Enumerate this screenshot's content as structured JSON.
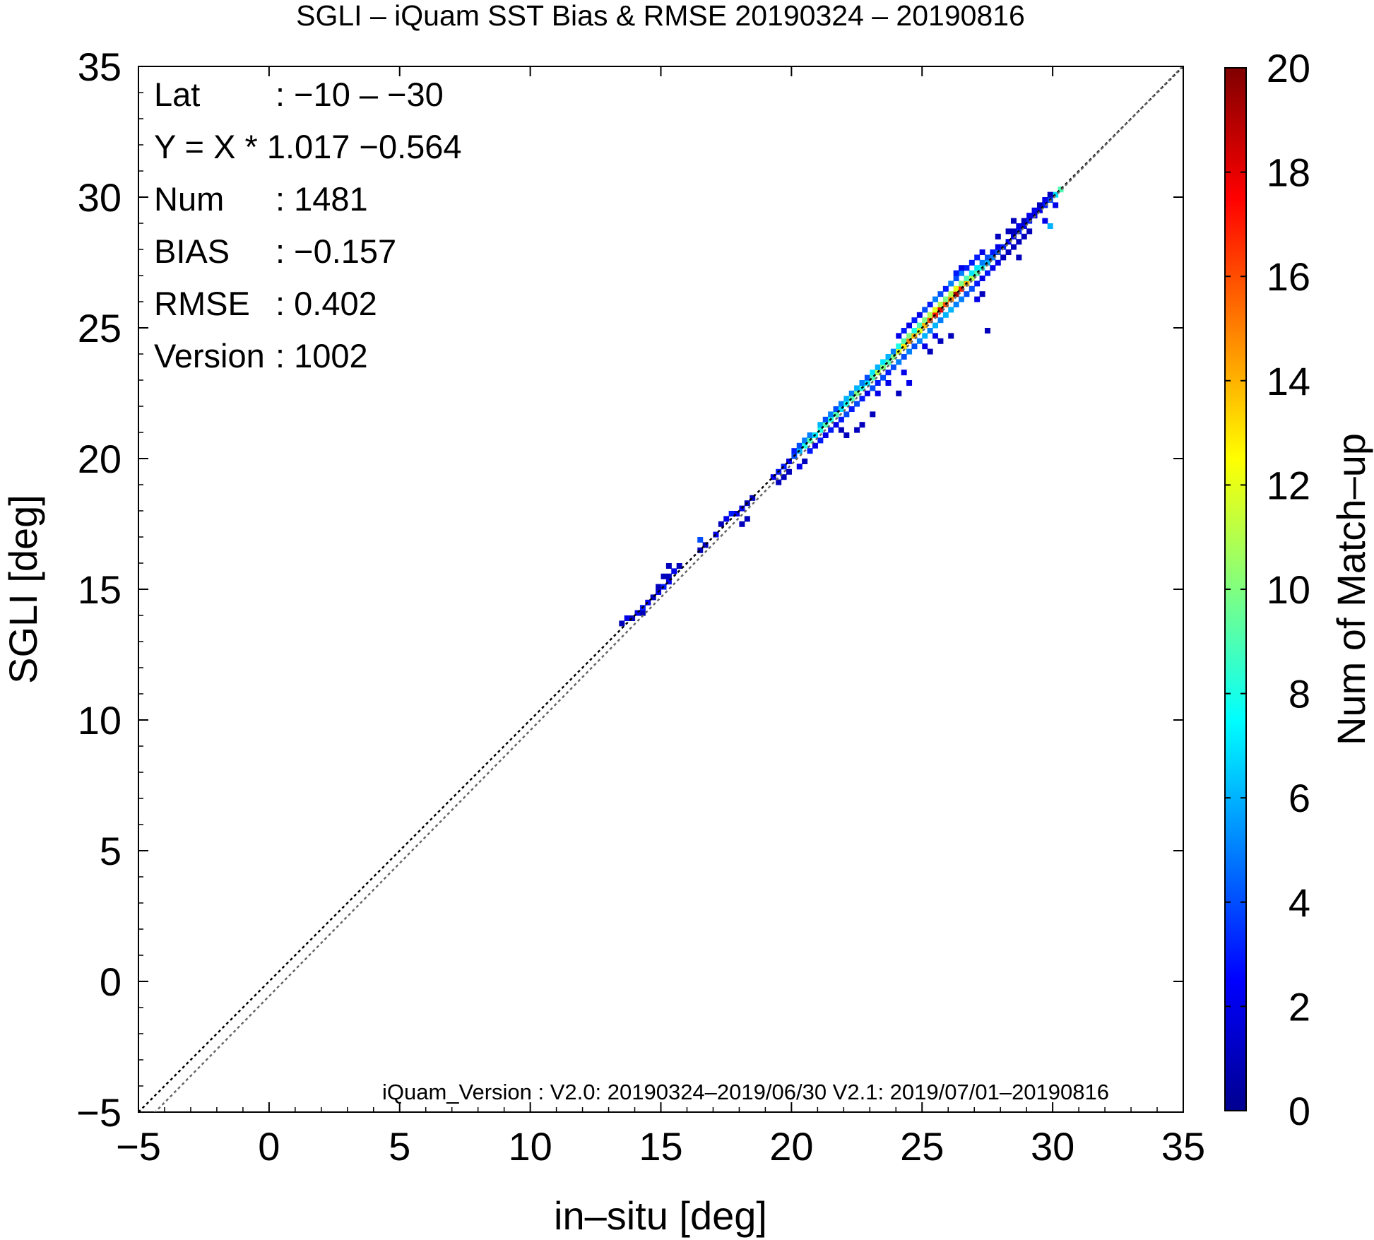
{
  "chart_data": {
    "type": "heatmap",
    "title": "SGLI – iQuam  SST Bias & RMSE 20190324 – 20190816",
    "xlabel": "in–situ [deg]",
    "ylabel": "SGLI [deg]",
    "xlim": [
      -5,
      35
    ],
    "ylim": [
      -5,
      35
    ],
    "x_ticks": [
      "−5",
      "0",
      "5",
      "10",
      "15",
      "20",
      "25",
      "30",
      "35"
    ],
    "y_ticks": [
      "−5",
      "0",
      "5",
      "10",
      "15",
      "20",
      "25",
      "30",
      "35"
    ],
    "grid": false,
    "info": [
      {
        "key": "Lat",
        "value": ": −10 – −30"
      },
      {
        "key": "Y = X * 1.017 −0.564",
        "value": ""
      },
      {
        "key": "Num",
        "value": ": 1481"
      },
      {
        "key": "BIAS",
        "value": ": −0.157"
      },
      {
        "key": "RMSE",
        "value": ": 0.402"
      },
      {
        "key": "Version",
        "value": ": 1002"
      }
    ],
    "footnote": "iQuam_Version : V2.0: 20190324–2019/06/30 V2.1: 2019/07/01–20190816",
    "lines": [
      {
        "name": "one-to-one",
        "slope": 1,
        "intercept": 0,
        "color": "#000000",
        "dash": "dotted"
      },
      {
        "name": "regression",
        "slope": 1.017,
        "intercept": -0.564,
        "color": "#666666",
        "dash": "dotted"
      }
    ],
    "colorbar": {
      "label": "Num of Match–up",
      "min": 0,
      "max": 20,
      "ticks": [
        "0",
        "2",
        "4",
        "6",
        "8",
        "10",
        "12",
        "14",
        "16",
        "18",
        "20"
      ],
      "colors": [
        "#00008f",
        "#0000ff",
        "#0080ff",
        "#00ffff",
        "#80ff80",
        "#ffff00",
        "#ff8000",
        "#ff0000",
        "#800000"
      ]
    },
    "bin_size": 0.2,
    "cells": [
      [
        13.4,
        13.6,
        1
      ],
      [
        13.6,
        13.8,
        2
      ],
      [
        13.8,
        13.8,
        1
      ],
      [
        14.0,
        14.0,
        2
      ],
      [
        14.2,
        14.0,
        1
      ],
      [
        14.2,
        14.2,
        3
      ],
      [
        14.4,
        14.4,
        2
      ],
      [
        14.6,
        14.6,
        1
      ],
      [
        14.8,
        14.8,
        2
      ],
      [
        14.8,
        15.0,
        1
      ],
      [
        15.0,
        15.0,
        3
      ],
      [
        15.2,
        15.2,
        2
      ],
      [
        15.2,
        15.4,
        1
      ],
      [
        15.4,
        15.6,
        2
      ],
      [
        15.6,
        15.8,
        1
      ],
      [
        15.2,
        15.8,
        1
      ],
      [
        15.0,
        15.4,
        1
      ],
      [
        16.4,
        16.8,
        4
      ],
      [
        16.6,
        16.6,
        1
      ],
      [
        17.0,
        17.0,
        2
      ],
      [
        17.2,
        17.4,
        1
      ],
      [
        17.4,
        17.6,
        2
      ],
      [
        17.6,
        17.8,
        3
      ],
      [
        17.8,
        17.8,
        2
      ],
      [
        18.0,
        18.0,
        2
      ],
      [
        18.2,
        18.2,
        1
      ],
      [
        18.4,
        18.4,
        1
      ],
      [
        18.2,
        17.6,
        1
      ],
      [
        18.0,
        17.4,
        1
      ],
      [
        16.4,
        16.4,
        1
      ],
      [
        19.2,
        19.2,
        2
      ],
      [
        19.4,
        19.4,
        3
      ],
      [
        19.6,
        19.6,
        3
      ],
      [
        19.8,
        19.8,
        2
      ],
      [
        19.4,
        19.0,
        1
      ],
      [
        19.8,
        19.4,
        1
      ],
      [
        19.6,
        19.2,
        1
      ],
      [
        20.0,
        20.0,
        4
      ],
      [
        20.0,
        20.2,
        3
      ],
      [
        20.2,
        20.2,
        6
      ],
      [
        20.2,
        20.4,
        4
      ],
      [
        20.4,
        20.4,
        8
      ],
      [
        20.4,
        20.6,
        5
      ],
      [
        20.6,
        20.6,
        9
      ],
      [
        20.6,
        20.8,
        5
      ],
      [
        20.8,
        20.8,
        7
      ],
      [
        20.6,
        20.2,
        3
      ],
      [
        20.8,
        20.4,
        2
      ],
      [
        21.0,
        20.6,
        3
      ],
      [
        21.0,
        21.0,
        8
      ],
      [
        21.0,
        21.2,
        6
      ],
      [
        21.2,
        21.2,
        9
      ],
      [
        21.2,
        21.4,
        4
      ],
      [
        21.4,
        21.4,
        8
      ],
      [
        21.4,
        21.6,
        5
      ],
      [
        21.6,
        21.6,
        9
      ],
      [
        21.6,
        21.8,
        4
      ],
      [
        21.8,
        21.8,
        7
      ],
      [
        21.8,
        22.0,
        5
      ],
      [
        21.2,
        20.8,
        2
      ],
      [
        21.4,
        21.0,
        3
      ],
      [
        21.6,
        21.2,
        2
      ],
      [
        21.8,
        21.4,
        3
      ],
      [
        20.4,
        19.8,
        1
      ],
      [
        20.2,
        19.6,
        2
      ],
      [
        22.0,
        22.0,
        8
      ],
      [
        22.0,
        22.2,
        6
      ],
      [
        22.2,
        22.2,
        9
      ],
      [
        22.2,
        22.4,
        5
      ],
      [
        22.4,
        22.4,
        10
      ],
      [
        22.4,
        22.6,
        6
      ],
      [
        22.6,
        22.6,
        8
      ],
      [
        22.6,
        22.8,
        5
      ],
      [
        22.8,
        22.8,
        7
      ],
      [
        22.8,
        23.0,
        4
      ],
      [
        22.0,
        21.6,
        4
      ],
      [
        22.2,
        21.8,
        3
      ],
      [
        22.4,
        22.0,
        4
      ],
      [
        22.6,
        22.2,
        3
      ],
      [
        22.8,
        22.4,
        2
      ],
      [
        21.8,
        21.0,
        1
      ],
      [
        22.0,
        20.8,
        1
      ],
      [
        22.4,
        21.0,
        1
      ],
      [
        22.6,
        21.2,
        1
      ],
      [
        23.0,
        21.6,
        1
      ],
      [
        23.0,
        23.0,
        9
      ],
      [
        23.0,
        23.2,
        7
      ],
      [
        23.2,
        23.2,
        11
      ],
      [
        23.2,
        23.4,
        6
      ],
      [
        23.4,
        23.4,
        10
      ],
      [
        23.4,
        23.6,
        7
      ],
      [
        23.6,
        23.6,
        9
      ],
      [
        23.6,
        23.8,
        6
      ],
      [
        23.8,
        23.8,
        10
      ],
      [
        23.8,
        24.0,
        5
      ],
      [
        23.0,
        22.6,
        4
      ],
      [
        23.2,
        22.8,
        3
      ],
      [
        23.4,
        23.0,
        4
      ],
      [
        23.6,
        23.2,
        3
      ],
      [
        23.8,
        23.4,
        4
      ],
      [
        23.2,
        22.4,
        2
      ],
      [
        23.6,
        22.8,
        2
      ],
      [
        24.0,
        22.4,
        1
      ],
      [
        24.4,
        22.8,
        2
      ],
      [
        24.2,
        23.2,
        2
      ],
      [
        24.0,
        24.0,
        12
      ],
      [
        24.0,
        24.2,
        8
      ],
      [
        24.2,
        24.2,
        13
      ],
      [
        24.2,
        24.4,
        9
      ],
      [
        24.4,
        24.4,
        15
      ],
      [
        24.4,
        24.6,
        10
      ],
      [
        24.6,
        24.6,
        14
      ],
      [
        24.6,
        24.8,
        8
      ],
      [
        24.8,
        24.8,
        12
      ],
      [
        24.8,
        25.0,
        9
      ],
      [
        24.0,
        23.6,
        5
      ],
      [
        24.2,
        23.8,
        4
      ],
      [
        24.4,
        24.0,
        5
      ],
      [
        24.6,
        24.2,
        4
      ],
      [
        24.8,
        24.4,
        5
      ],
      [
        24.2,
        24.8,
        3
      ],
      [
        24.0,
        24.6,
        2
      ],
      [
        24.4,
        25.0,
        2
      ],
      [
        24.6,
        25.2,
        3
      ],
      [
        24.8,
        25.4,
        2
      ],
      [
        25.0,
        25.0,
        14
      ],
      [
        25.0,
        25.2,
        10
      ],
      [
        25.2,
        25.2,
        16
      ],
      [
        25.2,
        25.4,
        11
      ],
      [
        25.4,
        25.4,
        17
      ],
      [
        25.4,
        25.6,
        12
      ],
      [
        25.6,
        25.6,
        18
      ],
      [
        25.6,
        25.8,
        11
      ],
      [
        25.8,
        25.8,
        16
      ],
      [
        25.8,
        26.0,
        10
      ],
      [
        25.0,
        24.6,
        6
      ],
      [
        25.2,
        24.8,
        5
      ],
      [
        25.4,
        25.0,
        6
      ],
      [
        25.6,
        25.2,
        5
      ],
      [
        25.8,
        25.4,
        6
      ],
      [
        25.0,
        25.6,
        4
      ],
      [
        25.2,
        25.8,
        3
      ],
      [
        25.4,
        26.0,
        5
      ],
      [
        25.6,
        26.2,
        4
      ],
      [
        25.8,
        26.4,
        3
      ],
      [
        25.0,
        24.2,
        2
      ],
      [
        25.4,
        24.6,
        2
      ],
      [
        25.6,
        24.4,
        1
      ],
      [
        25.2,
        24.0,
        1
      ],
      [
        26.0,
        24.6,
        1
      ],
      [
        26.0,
        26.0,
        15
      ],
      [
        26.0,
        26.2,
        11
      ],
      [
        26.2,
        26.2,
        19
      ],
      [
        26.2,
        26.4,
        12
      ],
      [
        26.4,
        26.4,
        17
      ],
      [
        26.4,
        26.6,
        10
      ],
      [
        26.6,
        26.6,
        14
      ],
      [
        26.6,
        26.8,
        9
      ],
      [
        26.8,
        26.8,
        11
      ],
      [
        26.8,
        27.0,
        7
      ],
      [
        26.0,
        25.6,
        6
      ],
      [
        26.2,
        25.8,
        5
      ],
      [
        26.4,
        26.0,
        5
      ],
      [
        26.6,
        26.2,
        4
      ],
      [
        26.8,
        26.4,
        4
      ],
      [
        26.0,
        26.6,
        5
      ],
      [
        26.2,
        26.8,
        4
      ],
      [
        26.4,
        27.0,
        5
      ],
      [
        26.6,
        27.2,
        3
      ],
      [
        26.8,
        27.4,
        3
      ],
      [
        26.4,
        27.2,
        2
      ],
      [
        26.2,
        27.0,
        3
      ],
      [
        27.0,
        26.0,
        2
      ],
      [
        27.2,
        26.2,
        1
      ],
      [
        27.4,
        24.8,
        1
      ],
      [
        27.0,
        27.0,
        9
      ],
      [
        27.0,
        27.2,
        7
      ],
      [
        27.2,
        27.2,
        8
      ],
      [
        27.2,
        27.4,
        5
      ],
      [
        27.4,
        27.4,
        6
      ],
      [
        27.4,
        27.6,
        4
      ],
      [
        27.6,
        27.6,
        5
      ],
      [
        27.6,
        27.8,
        3
      ],
      [
        27.8,
        27.8,
        4
      ],
      [
        27.8,
        28.0,
        2
      ],
      [
        27.0,
        26.6,
        3
      ],
      [
        27.2,
        26.8,
        2
      ],
      [
        27.4,
        27.0,
        3
      ],
      [
        27.6,
        27.2,
        2
      ],
      [
        27.8,
        27.4,
        2
      ],
      [
        27.0,
        27.6,
        3
      ],
      [
        27.2,
        27.8,
        2
      ],
      [
        28.0,
        27.6,
        1
      ],
      [
        28.2,
        27.8,
        1
      ],
      [
        28.0,
        28.0,
        3
      ],
      [
        28.2,
        28.2,
        2
      ],
      [
        28.4,
        28.4,
        2
      ],
      [
        28.6,
        28.6,
        3
      ],
      [
        28.8,
        28.8,
        2
      ],
      [
        28.4,
        28.6,
        1
      ],
      [
        28.6,
        28.8,
        2
      ],
      [
        28.8,
        29.0,
        1
      ],
      [
        29.0,
        29.0,
        3
      ],
      [
        29.2,
        29.2,
        2
      ],
      [
        29.4,
        29.4,
        2
      ],
      [
        29.6,
        29.6,
        3
      ],
      [
        29.8,
        29.8,
        4
      ],
      [
        29.0,
        29.2,
        2
      ],
      [
        29.2,
        29.4,
        2
      ],
      [
        29.4,
        29.6,
        1
      ],
      [
        29.6,
        29.8,
        2
      ],
      [
        28.4,
        28.0,
        1
      ],
      [
        28.6,
        28.2,
        1
      ],
      [
        28.8,
        28.4,
        1
      ],
      [
        29.0,
        28.6,
        1
      ],
      [
        29.6,
        29.0,
        2
      ],
      [
        29.8,
        28.8,
        6
      ],
      [
        30.0,
        30.0,
        7
      ],
      [
        30.2,
        30.2,
        9
      ],
      [
        30.0,
        29.6,
        2
      ],
      [
        29.8,
        30.0,
        1
      ],
      [
        28.6,
        27.6,
        1
      ],
      [
        28.4,
        29.0,
        1
      ],
      [
        28.2,
        28.6,
        1
      ],
      [
        27.8,
        28.4,
        1
      ]
    ]
  }
}
